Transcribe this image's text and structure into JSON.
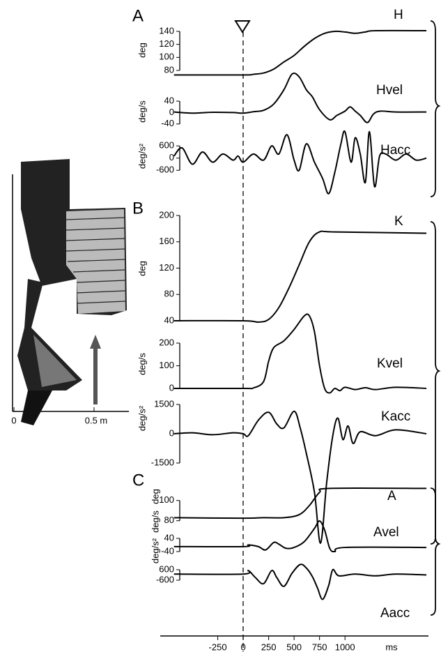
{
  "chart_data": {
    "type": "line",
    "panel_labels": [
      "A",
      "B",
      "C"
    ],
    "xlim": [
      -815,
      1820
    ],
    "xticks": [
      -250,
      0,
      250,
      500,
      750,
      1000
    ],
    "xlabel": "ms",
    "inset": {
      "x_labels": [
        "0",
        "0.5  m"
      ]
    },
    "traces": [
      {
        "title": "H",
        "ylabel": "deg",
        "ylim": [
          70,
          145
        ],
        "yticks": [
          140,
          120,
          100,
          80
        ],
        "x": [
          -680,
          0,
          100,
          200,
          300,
          400,
          500,
          600,
          700,
          800,
          900,
          1000,
          1100,
          1200,
          1300,
          1800
        ],
        "values": [
          73,
          73,
          74,
          76,
          82,
          93,
          103,
          117,
          129,
          137,
          140,
          139,
          137,
          139,
          141,
          141
        ]
      },
      {
        "title": "Hvel",
        "ylabel": "deg/s",
        "ylim": [
          -60,
          150
        ],
        "yticks": [
          40,
          0,
          -40
        ],
        "x": [
          -680,
          -500,
          -300,
          -100,
          0,
          100,
          200,
          300,
          400,
          480,
          550,
          620,
          680,
          750,
          850,
          920,
          1000,
          1050,
          1100,
          1150,
          1220,
          1280,
          1350,
          1500,
          1800
        ],
        "values": [
          2,
          -2,
          1,
          0,
          -2,
          3,
          8,
          30,
          80,
          135,
          125,
          80,
          55,
          10,
          -25,
          -10,
          5,
          20,
          5,
          -10,
          -35,
          -5,
          5,
          2,
          2
        ]
      },
      {
        "title": "Hacc",
        "ylabel": "deg/s²",
        "ylim": [
          -2000,
          1500
        ],
        "yticks": [
          600,
          0,
          -600
        ],
        "x": [
          -680,
          -600,
          -500,
          -400,
          -300,
          -200,
          -100,
          -50,
          0,
          100,
          200,
          280,
          350,
          430,
          500,
          550,
          620,
          700,
          780,
          840,
          900,
          960,
          1000,
          1060,
          1100,
          1150,
          1200,
          1240,
          1290,
          1340,
          1400,
          1500,
          1600,
          1700,
          1800
        ],
        "values": [
          100,
          500,
          -300,
          300,
          -200,
          200,
          -100,
          100,
          -200,
          200,
          -100,
          600,
          200,
          1150,
          -100,
          -600,
          700,
          -200,
          -1000,
          -1750,
          -700,
          700,
          1300,
          -200,
          1000,
          200,
          -1200,
          1300,
          -1400,
          100,
          200,
          -100,
          200,
          -100,
          0
        ]
      },
      {
        "title": "K",
        "ylabel": "deg",
        "ylim": [
          35,
          205
        ],
        "yticks": [
          200,
          160,
          120,
          80,
          40
        ],
        "x": [
          -680,
          0,
          150,
          250,
          350,
          450,
          550,
          650,
          750,
          900,
          1800
        ],
        "values": [
          40,
          40,
          38,
          42,
          60,
          90,
          125,
          160,
          175,
          175,
          173
        ]
      },
      {
        "title": "Kvel",
        "ylabel": "deg/s",
        "ylim": [
          -20,
          340
        ],
        "yticks": [
          200,
          100,
          0
        ],
        "x": [
          -680,
          0,
          100,
          200,
          250,
          300,
          400,
          500,
          600,
          650,
          700,
          750,
          800,
          850,
          900,
          950,
          1000,
          1100,
          1200,
          1300,
          1500,
          1800
        ],
        "values": [
          0,
          0,
          2,
          30,
          120,
          180,
          210,
          260,
          320,
          320,
          250,
          100,
          0,
          -20,
          0,
          -10,
          5,
          -5,
          3,
          -5,
          5,
          0
        ]
      },
      {
        "title": "Kacc",
        "ylabel": "deg/s²",
        "ylim": [
          -6000,
          1800
        ],
        "yticks": [
          1500,
          0,
          -1500
        ],
        "x": [
          -680,
          -500,
          -300,
          -100,
          0,
          50,
          150,
          250,
          330,
          400,
          500,
          560,
          620,
          700,
          760,
          820,
          880,
          930,
          980,
          1030,
          1080,
          1150,
          1300,
          1500,
          1800
        ],
        "values": [
          0,
          50,
          -50,
          50,
          0,
          -100,
          700,
          1100,
          500,
          300,
          1150,
          300,
          -1000,
          -3000,
          -5600,
          -2500,
          -100,
          800,
          -300,
          400,
          -500,
          100,
          -100,
          200,
          0
        ]
      },
      {
        "title": "A",
        "ylabel": "deg",
        "ylim": [
          75,
          115
        ],
        "yticks": [
          100,
          80
        ],
        "x": [
          -680,
          0,
          200,
          400,
          550,
          650,
          750,
          850,
          1800
        ],
        "values": [
          83,
          82.5,
          83,
          83,
          86,
          95,
          108,
          112,
          112
        ]
      },
      {
        "title": "Avel",
        "ylabel": "deg/s",
        "ylim": [
          -60,
          160
        ],
        "yticks": [
          40,
          -40
        ],
        "x": [
          -680,
          0,
          50,
          150,
          220,
          300,
          350,
          420,
          500,
          600,
          700,
          750,
          800,
          850,
          900,
          1000,
          1800
        ],
        "values": [
          -10,
          -10,
          0,
          -10,
          -30,
          15,
          5,
          -20,
          -15,
          20,
          100,
          145,
          90,
          -20,
          -40,
          -15,
          -15
        ]
      },
      {
        "title": "Aacc",
        "ylabel": "deg/s²",
        "ylim": [
          -3000,
          1600
        ],
        "yticks": [
          600,
          -600
        ],
        "x": [
          -680,
          0,
          50,
          120,
          200,
          280,
          330,
          400,
          480,
          560,
          620,
          680,
          730,
          780,
          840,
          880,
          940,
          1100,
          1300,
          1500,
          1800
        ],
        "values": [
          100,
          100,
          500,
          -300,
          -1000,
          500,
          -300,
          -1300,
          200,
          1200,
          800,
          -200,
          -1500,
          -2800,
          -1200,
          600,
          -100,
          100,
          -100,
          100,
          0
        ]
      }
    ]
  }
}
